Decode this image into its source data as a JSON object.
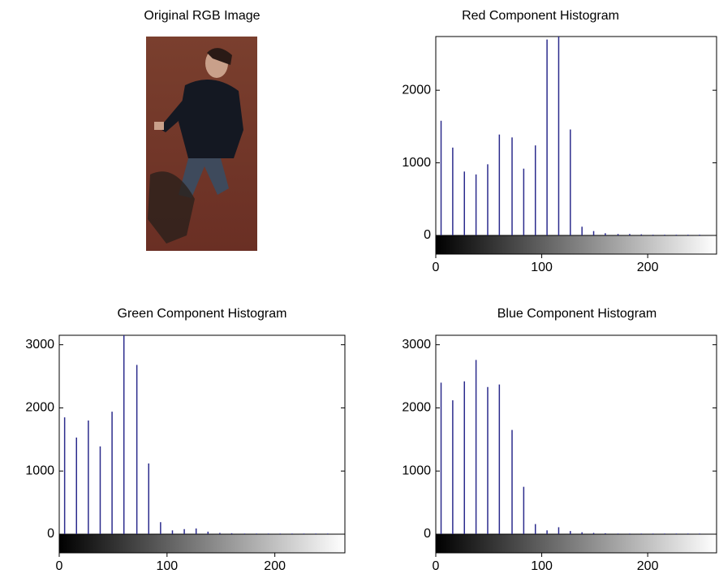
{
  "chart_data": [
    {
      "type": "image",
      "title": "Original RGB Image"
    },
    {
      "type": "stem",
      "title": "Red Component Histogram",
      "color": "#2b2b8c",
      "x": [
        5,
        16,
        27,
        38,
        49,
        60,
        72,
        83,
        94,
        105,
        116,
        127,
        138,
        149,
        160,
        172,
        183,
        194,
        205,
        216,
        227,
        238,
        249
      ],
      "values": [
        1580,
        1210,
        880,
        840,
        980,
        1390,
        1350,
        920,
        1240,
        2700,
        2740,
        1460,
        120,
        60,
        30,
        20,
        20,
        15,
        10,
        10,
        10,
        10,
        10
      ],
      "xlim": [
        0,
        265
      ],
      "ylim": [
        0,
        2740
      ],
      "xticks": [
        0,
        100,
        200
      ],
      "yticks": [
        0,
        1000,
        2000
      ]
    },
    {
      "type": "stem",
      "title": "Green Component Histogram",
      "color": "#2b2b8c",
      "x": [
        5,
        16,
        27,
        38,
        49,
        60,
        72,
        83,
        94,
        105,
        116,
        127,
        138,
        149,
        160,
        172,
        183,
        194,
        205,
        216,
        227,
        238,
        249
      ],
      "values": [
        1850,
        1530,
        1800,
        1390,
        1940,
        3150,
        2680,
        1120,
        190,
        60,
        80,
        90,
        40,
        20,
        15,
        10,
        10,
        10,
        10,
        10,
        10,
        10,
        10
      ],
      "xlim": [
        0,
        265
      ],
      "ylim": [
        0,
        3150
      ],
      "xticks": [
        0,
        100,
        200
      ],
      "yticks": [
        0,
        1000,
        2000,
        3000
      ]
    },
    {
      "type": "stem",
      "title": "Blue Component Histogram",
      "color": "#2b2b8c",
      "x": [
        5,
        16,
        27,
        38,
        49,
        60,
        72,
        83,
        94,
        105,
        116,
        127,
        138,
        149,
        160,
        172,
        183,
        194,
        205,
        216,
        227,
        238,
        249
      ],
      "values": [
        2400,
        2120,
        2420,
        2760,
        2330,
        2370,
        1650,
        750,
        160,
        60,
        110,
        50,
        30,
        20,
        15,
        10,
        10,
        10,
        10,
        10,
        10,
        10,
        10
      ],
      "xlim": [
        0,
        265
      ],
      "ylim": [
        0,
        3150
      ],
      "xticks": [
        0,
        100,
        200
      ],
      "yticks": [
        0,
        1000,
        2000,
        3000
      ]
    }
  ]
}
